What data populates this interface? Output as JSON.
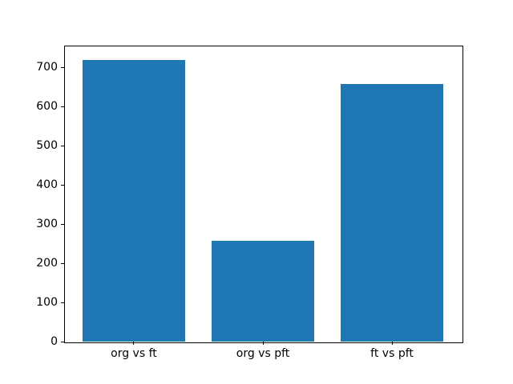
{
  "figure": {
    "background_color": "#ffffff",
    "title": ""
  },
  "chart_data": {
    "type": "bar",
    "categories": [
      "org vs ft",
      "org vs pft",
      "ft vs pft"
    ],
    "values": [
      718,
      257,
      657
    ],
    "title": "",
    "xlabel": "",
    "ylabel": "",
    "ylim": [
      0,
      754
    ],
    "yticks": [
      0,
      100,
      200,
      300,
      400,
      500,
      600,
      700
    ],
    "xlim": [
      -0.54,
      2.54
    ],
    "bar_width": 0.8,
    "bar_color": "#1f77b4",
    "axis_color": "#000000",
    "grid": "off",
    "legend": "none"
  }
}
